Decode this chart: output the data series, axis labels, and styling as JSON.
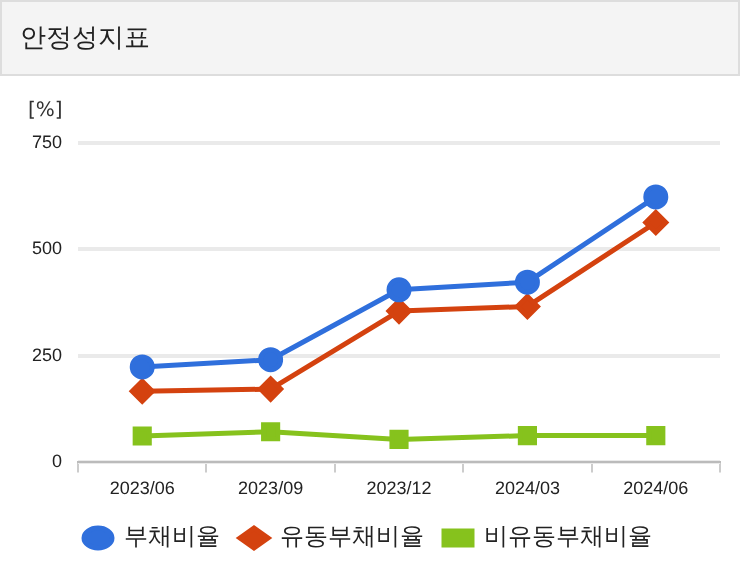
{
  "chart_data": {
    "type": "line",
    "title": "안정성지표",
    "ylabel": "[%]",
    "categories": [
      "2023/06",
      "2023/09",
      "2023/12",
      "2024/03",
      "2024/06"
    ],
    "series": [
      {
        "name": "부채비율",
        "color": "#2f6fdc",
        "marker": "circle",
        "values": [
          224,
          241,
          405,
          423,
          623
        ]
      },
      {
        "name": "유동부채비율",
        "color": "#d4420f",
        "marker": "diamond",
        "values": [
          167,
          172,
          355,
          366,
          563
        ]
      },
      {
        "name": "비유동부채비율",
        "color": "#86c21d",
        "marker": "square",
        "values": [
          62,
          72,
          54,
          63,
          63
        ]
      }
    ],
    "ylim": [
      0,
      750
    ],
    "yticks": [
      0,
      250,
      500,
      750
    ],
    "grid": "y",
    "legend": "bottom"
  }
}
